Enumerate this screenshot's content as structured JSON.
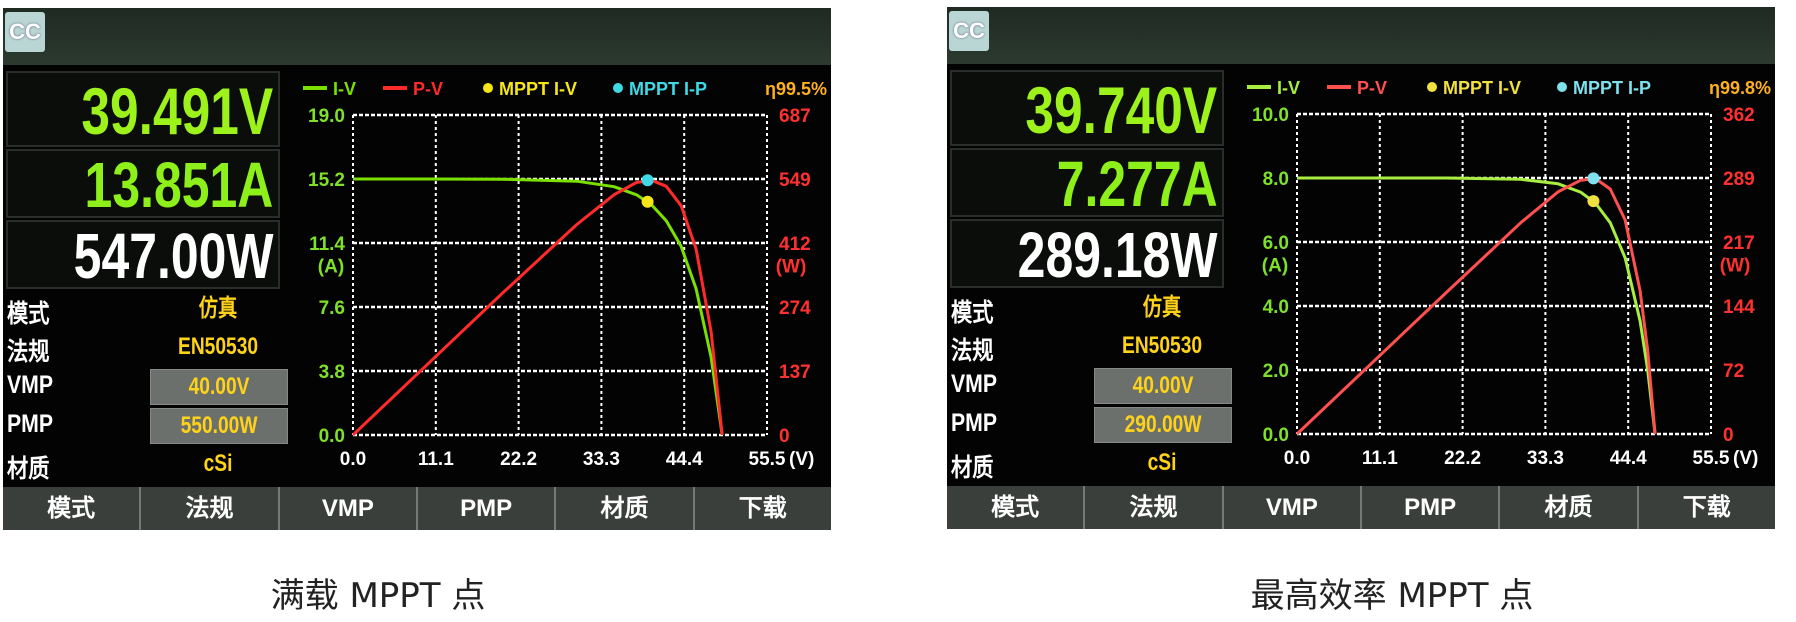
{
  "panels": [
    {
      "badge": "CC",
      "voltage": "39.491V",
      "current": "13.851A",
      "power": "547.00W",
      "settings": [
        {
          "label": "模式",
          "value": "仿真",
          "boxed": false
        },
        {
          "label": "法规",
          "value": "EN50530",
          "boxed": false
        },
        {
          "label": "VMP",
          "value": "40.00V",
          "boxed": true
        },
        {
          "label": "PMP",
          "value": "550.00W",
          "boxed": true
        },
        {
          "label": "材质",
          "value": "cSi",
          "boxed": false
        }
      ],
      "softkeys": [
        "模式",
        "法规",
        "VMP",
        "PMP",
        "材质",
        "下载"
      ],
      "caption": "满载 MPPT 点",
      "chart_data": {
        "type": "line",
        "legend": [
          "I-V",
          "P-V",
          "MPPT I-V",
          "MPPT I-P"
        ],
        "efficiency": "η99.5%",
        "xlabel": "(V)",
        "ylabel": "(A)",
        "y2label": "(W)",
        "xlim": [
          0,
          55.5
        ],
        "ylim": [
          0,
          19.0
        ],
        "y2lim": [
          0,
          687
        ],
        "xticks": [
          "0.0",
          "11.1",
          "22.2",
          "33.3",
          "44.4",
          "55.5"
        ],
        "yticks": [
          "0.0",
          "3.8",
          "7.6",
          "11.4",
          "15.2",
          "19.0"
        ],
        "y2ticks": [
          "0",
          "137",
          "274",
          "412",
          "549",
          "687"
        ],
        "grid": true,
        "legend_placement": "top",
        "series": [
          {
            "name": "I-V",
            "color": "#7be000",
            "axis": "left",
            "x": [
              0,
              10,
              20,
              30,
              35,
              38,
              40,
              42,
              44,
              46,
              48,
              49.5
            ],
            "y": [
              15.2,
              15.2,
              15.19,
              15.07,
              14.74,
              14.26,
              13.68,
              12.72,
              11.19,
              8.68,
              4.62,
              0
            ]
          },
          {
            "name": "P-V",
            "color": "#ff2a2a",
            "axis": "right",
            "x": [
              0,
              10,
              20,
              30,
              35,
              38,
              40,
              42,
              44,
              46,
              48,
              49.5
            ],
            "y": [
              0,
              152,
              304,
              452,
              516,
              542,
              547,
              534,
              492,
              399,
              222,
              0
            ]
          }
        ],
        "mppt_iv": {
          "x": 39.491,
          "y": 13.851,
          "color": "#f5e61a"
        },
        "mppt_ip": {
          "x": 39.491,
          "y": 547.0,
          "color": "#3fd9e6"
        }
      }
    },
    {
      "badge": "CC",
      "voltage": "39.740V",
      "current": "7.277A",
      "power": "289.18W",
      "settings": [
        {
          "label": "模式",
          "value": "仿真",
          "boxed": false
        },
        {
          "label": "法规",
          "value": "EN50530",
          "boxed": false
        },
        {
          "label": "VMP",
          "value": "40.00V",
          "boxed": true
        },
        {
          "label": "PMP",
          "value": "290.00W",
          "boxed": true
        },
        {
          "label": "材质",
          "value": "cSi",
          "boxed": false
        }
      ],
      "softkeys": [
        "模式",
        "法规",
        "VMP",
        "PMP",
        "材质",
        "下载"
      ],
      "caption": "最高效率 MPPT 点",
      "chart_data": {
        "type": "line",
        "legend": [
          "I-V",
          "P-V",
          "MPPT I-V",
          "MPPT I-P"
        ],
        "efficiency": "η99.8%",
        "xlabel": "(V)",
        "ylabel": "(A)",
        "y2label": "(W)",
        "xlim": [
          0,
          55.5
        ],
        "ylim": [
          0,
          10.0
        ],
        "y2lim": [
          0,
          362
        ],
        "xticks": [
          "0.0",
          "11.1",
          "22.2",
          "33.3",
          "44.4",
          "55.5"
        ],
        "yticks": [
          "0.0",
          "2.0",
          "4.0",
          "6.0",
          "8.0",
          "10.0"
        ],
        "y2ticks": [
          "0",
          "72",
          "144",
          "217",
          "289",
          "362"
        ],
        "grid": true,
        "legend_placement": "top",
        "series": [
          {
            "name": "I-V",
            "color": "#a8ee40",
            "axis": "left",
            "x": [
              0,
              10,
              20,
              30,
              35,
              38,
              40,
              42,
              44,
              46,
              47,
              48
            ],
            "y": [
              8.0,
              8.0,
              8.0,
              7.96,
              7.82,
              7.56,
              7.22,
              6.6,
              5.5,
              3.53,
              2.02,
              0
            ]
          },
          {
            "name": "P-V",
            "color": "#ff5050",
            "axis": "right",
            "x": [
              0,
              10,
              20,
              30,
              35,
              38,
              40,
              42,
              44,
              46,
              47,
              48
            ],
            "y": [
              0,
              80,
              160,
              239,
              274,
              287,
              289,
              277,
              242,
              162,
              95,
              0
            ]
          }
        ],
        "mppt_iv": {
          "x": 39.74,
          "y": 7.277,
          "color": "#f0e040"
        },
        "mppt_ip": {
          "x": 39.74,
          "y": 289.18,
          "color": "#7fe0ee"
        }
      }
    }
  ]
}
